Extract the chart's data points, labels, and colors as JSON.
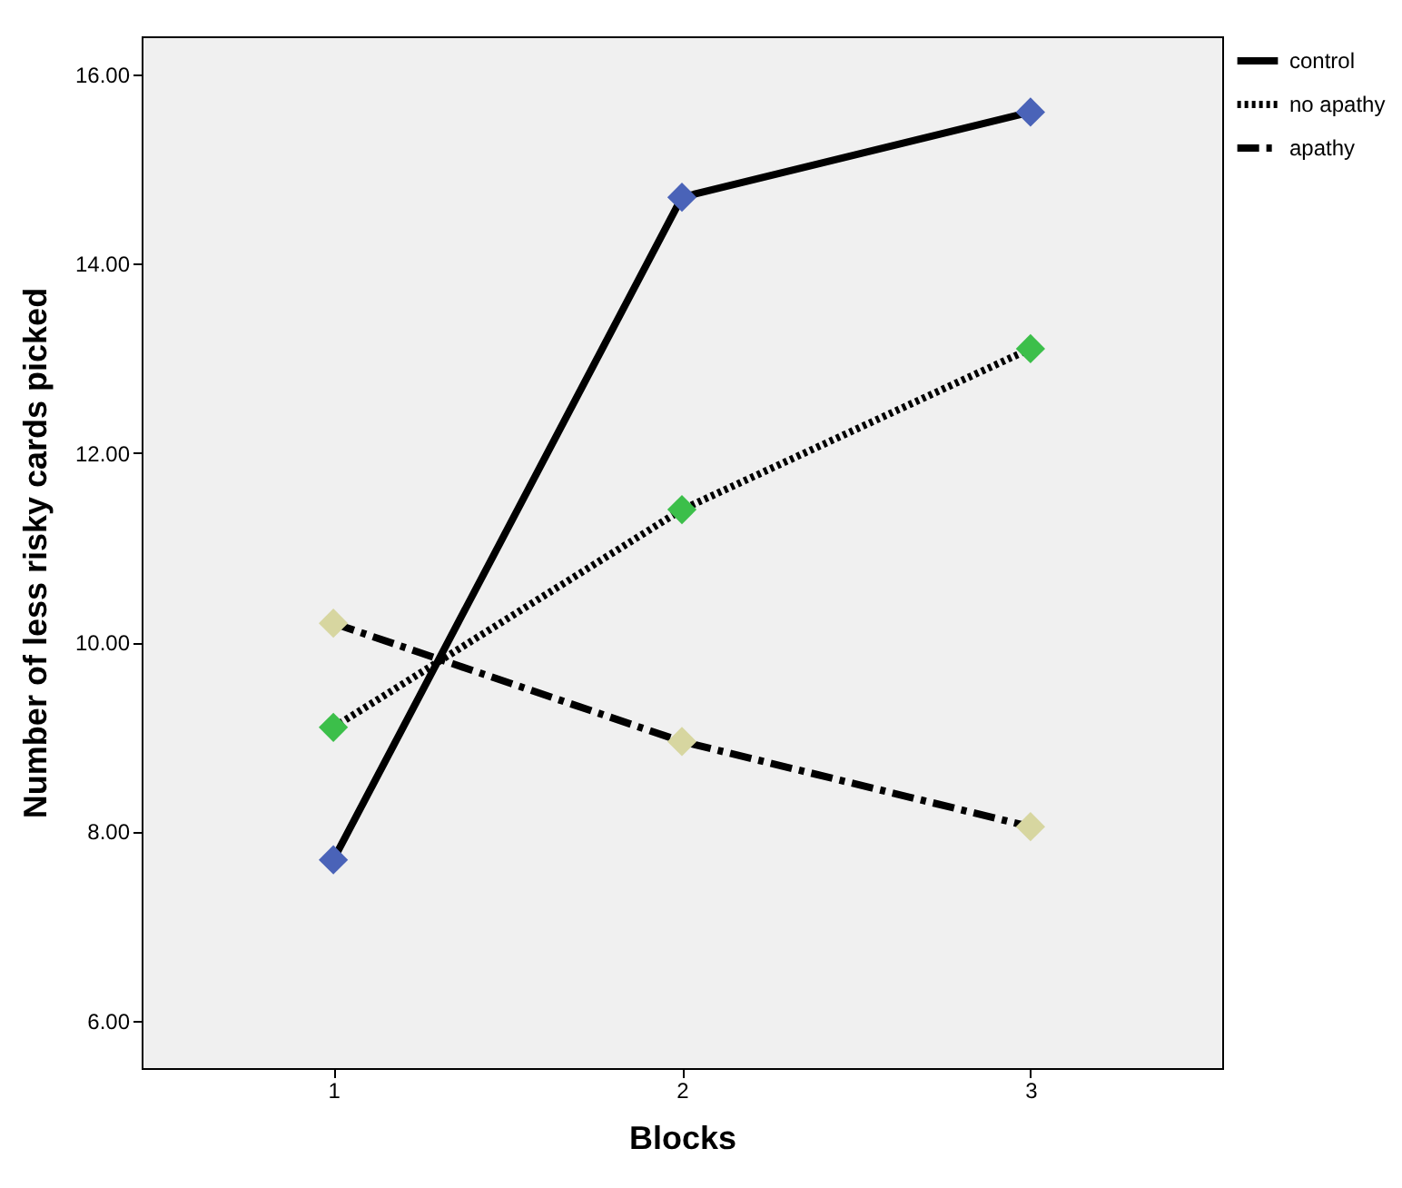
{
  "chart_data": {
    "type": "line",
    "xlabel": "Blocks",
    "ylabel": "Number of less risky cards picked",
    "categories": [
      "1",
      "2",
      "3"
    ],
    "ylim": [
      5.5,
      16.4
    ],
    "yticks": [
      {
        "value": 6,
        "label": "6.00"
      },
      {
        "value": 8,
        "label": "8.00"
      },
      {
        "value": 10,
        "label": "10.00"
      },
      {
        "value": 12,
        "label": "12.00"
      },
      {
        "value": 14,
        "label": "14.00"
      },
      {
        "value": 16,
        "label": "16.00"
      }
    ],
    "grid": false,
    "legend": "top right",
    "series": [
      {
        "name": "control",
        "color": "#000000",
        "line_style": "solid",
        "values": [
          7.7,
          14.7,
          15.6
        ]
      },
      {
        "name": "no apathy",
        "color": "#000000",
        "line_style": "dotted",
        "values": [
          9.1,
          11.4,
          13.1
        ]
      },
      {
        "name": "apathy",
        "color": "#000000",
        "line_style": "dashed",
        "values": [
          10.2,
          8.95,
          8.05
        ]
      },
      {
        "type": "scatter",
        "marker": "diamond",
        "color": "#4a63b8",
        "values": [
          7.7,
          14.7,
          15.6
        ]
      },
      {
        "type": "scatter",
        "marker": "diamond",
        "color": "#3cbf4a",
        "values": [
          9.1,
          11.4,
          13.1
        ]
      },
      {
        "type": "scatter",
        "marker": "diamond",
        "color": "#d7d6a0",
        "values": [
          10.2,
          8.95,
          8.05
        ]
      }
    ]
  }
}
